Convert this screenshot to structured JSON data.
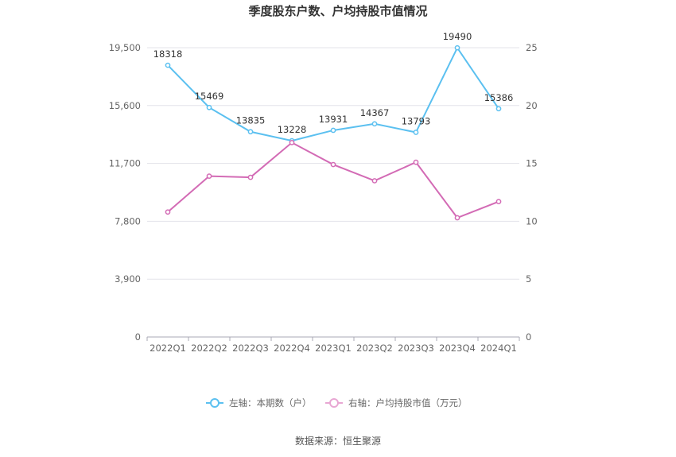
{
  "chart_data": {
    "type": "line",
    "title": "季度股东户数、户均持股市值情况",
    "categories": [
      "2022Q1",
      "2022Q2",
      "2022Q3",
      "2022Q4",
      "2023Q1",
      "2023Q2",
      "2023Q3",
      "2023Q4",
      "2024Q1"
    ],
    "left_axis": {
      "ticks": [
        "0",
        "3,900",
        "7,800",
        "11,700",
        "15,600",
        "19,500"
      ],
      "ylim": [
        0,
        19500
      ]
    },
    "right_axis": {
      "ticks": [
        "0",
        "5",
        "10",
        "15",
        "20",
        "25"
      ],
      "ylim": [
        0,
        25
      ]
    },
    "series": [
      {
        "name": "左轴：本期数（户）",
        "axis": "left",
        "color": "#5bc0f0",
        "values": [
          18318,
          15469,
          13835,
          13228,
          13931,
          14367,
          13793,
          19490,
          15386
        ],
        "labels": [
          "18318",
          "15469",
          "13835",
          "13228",
          "13931",
          "14367",
          "13793",
          "19490",
          "15386"
        ]
      },
      {
        "name": "右轴：户均持股市值（万元）",
        "axis": "right",
        "color": "#d36bb5",
        "values": [
          10.8,
          13.9,
          13.8,
          16.8,
          14.9,
          13.5,
          15.1,
          10.3,
          11.7
        ]
      }
    ],
    "grid": true,
    "legend_position": "bottom"
  },
  "source": "数据来源：恒生聚源"
}
